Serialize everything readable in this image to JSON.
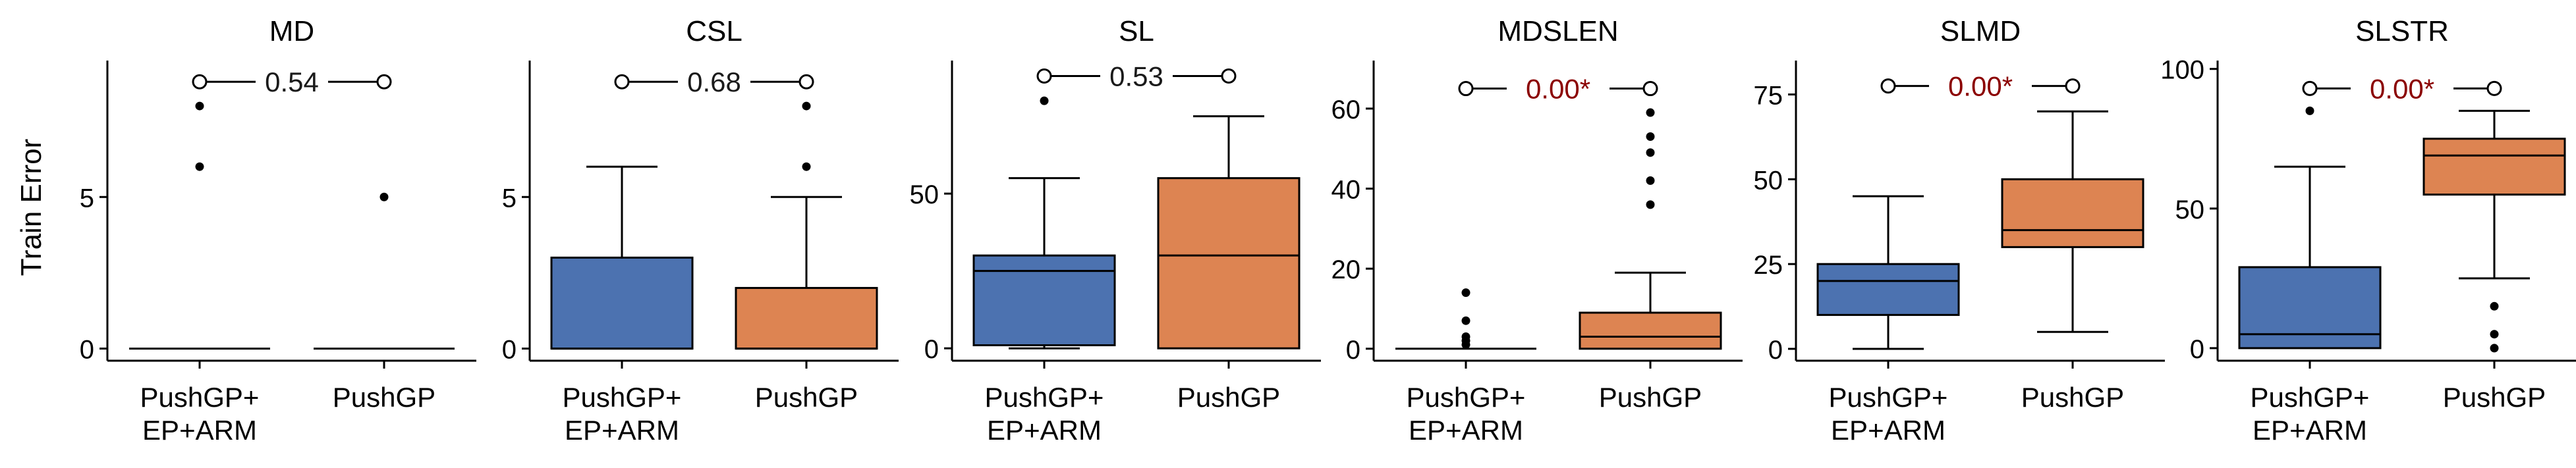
{
  "figure": {
    "ylabel": "Train Error"
  },
  "colors": {
    "box_a": "#4c72b0",
    "box_b": "#dd8452",
    "p_normal": "#1a1a1a",
    "p_significant": "#8b0000",
    "axis": "#000000"
  },
  "chart_data": [
    {
      "type": "box",
      "title": "MD",
      "ylabel": "Train Error",
      "ylim": [
        -0.4,
        9.5
      ],
      "yticks": [
        0,
        5
      ],
      "categories": [
        "PushGP+\nEP+ARM",
        "PushGP"
      ],
      "boxes": [
        {
          "category": "PushGP+\nEP+ARM",
          "q1": 0,
          "median": 0,
          "q3": 0,
          "whisker_low": 0,
          "whisker_high": 0,
          "outliers": [
            6,
            8
          ],
          "color": "#4c72b0"
        },
        {
          "category": "PushGP",
          "q1": 0,
          "median": 0,
          "q3": 0,
          "whisker_low": 0,
          "whisker_high": 0,
          "outliers": [
            5
          ],
          "color": "#dd8452"
        }
      ],
      "annotation": {
        "text": "0.54",
        "y": 8.8,
        "significant": false
      }
    },
    {
      "type": "box",
      "title": "CSL",
      "ylim": [
        -0.4,
        9.5
      ],
      "yticks": [
        0,
        5
      ],
      "categories": [
        "PushGP+\nEP+ARM",
        "PushGP"
      ],
      "boxes": [
        {
          "category": "PushGP+\nEP+ARM",
          "q1": 0,
          "median": 0,
          "q3": 3,
          "whisker_low": 0,
          "whisker_high": 6,
          "outliers": [],
          "color": "#4c72b0"
        },
        {
          "category": "PushGP",
          "q1": 0,
          "median": 0,
          "q3": 2,
          "whisker_low": 0,
          "whisker_high": 5,
          "outliers": [
            6,
            8
          ],
          "color": "#dd8452"
        }
      ],
      "annotation": {
        "text": "0.68",
        "y": 8.8,
        "significant": false
      }
    },
    {
      "type": "box",
      "title": "SL",
      "ylim": [
        -4,
        93
      ],
      "yticks": [
        0,
        50
      ],
      "categories": [
        "PushGP+\nEP+ARM",
        "PushGP"
      ],
      "boxes": [
        {
          "category": "PushGP+\nEP+ARM",
          "q1": 1,
          "median": 25,
          "q3": 30,
          "whisker_low": 0,
          "whisker_high": 55,
          "outliers": [
            80
          ],
          "color": "#4c72b0"
        },
        {
          "category": "PushGP",
          "q1": 0,
          "median": 30,
          "q3": 55,
          "whisker_low": 0,
          "whisker_high": 75,
          "outliers": [],
          "color": "#dd8452"
        }
      ],
      "annotation": {
        "text": "0.53",
        "y": 88,
        "significant": false
      }
    },
    {
      "type": "box",
      "title": "MDSLEN",
      "ylim": [
        -3,
        72
      ],
      "yticks": [
        0,
        20,
        40,
        60
      ],
      "categories": [
        "PushGP+\nEP+ARM",
        "PushGP"
      ],
      "boxes": [
        {
          "category": "PushGP+\nEP+ARM",
          "q1": 0,
          "median": 0,
          "q3": 0,
          "whisker_low": 0,
          "whisker_high": 0,
          "outliers": [
            1,
            2,
            3,
            7,
            14
          ],
          "color": "#4c72b0"
        },
        {
          "category": "PushGP",
          "q1": 0,
          "median": 3,
          "q3": 9,
          "whisker_low": 0,
          "whisker_high": 19,
          "outliers": [
            36,
            42,
            49,
            53,
            59
          ],
          "color": "#dd8452"
        }
      ],
      "annotation": {
        "text": "0.00*",
        "y": 65,
        "significant": true
      }
    },
    {
      "type": "box",
      "title": "SLMD",
      "ylim": [
        -3.5,
        85
      ],
      "yticks": [
        0,
        25,
        50,
        75
      ],
      "categories": [
        "PushGP+\nEP+ARM",
        "PushGP"
      ],
      "boxes": [
        {
          "category": "PushGP+\nEP+ARM",
          "q1": 10,
          "median": 20,
          "q3": 25,
          "whisker_low": 0,
          "whisker_high": 45,
          "outliers": [],
          "color": "#4c72b0"
        },
        {
          "category": "PushGP",
          "q1": 30,
          "median": 35,
          "q3": 50,
          "whisker_low": 5,
          "whisker_high": 70,
          "outliers": [],
          "color": "#dd8452"
        }
      ],
      "annotation": {
        "text": "0.00*",
        "y": 77.5,
        "significant": true
      }
    },
    {
      "type": "box",
      "title": "SLSTR",
      "ylim": [
        -4.5,
        103
      ],
      "yticks": [
        0,
        50,
        100
      ],
      "categories": [
        "PushGP+\nEP+ARM",
        "PushGP"
      ],
      "boxes": [
        {
          "category": "PushGP+\nEP+ARM",
          "q1": 0,
          "median": 5,
          "q3": 29,
          "whisker_low": 0,
          "whisker_high": 65,
          "outliers": [
            85
          ],
          "color": "#4c72b0"
        },
        {
          "category": "PushGP",
          "q1": 55,
          "median": 69,
          "q3": 75,
          "whisker_low": 25,
          "whisker_high": 85,
          "outliers": [
            0,
            5,
            15
          ],
          "color": "#dd8452"
        }
      ],
      "annotation": {
        "text": "0.00*",
        "y": 93,
        "significant": true
      }
    }
  ]
}
